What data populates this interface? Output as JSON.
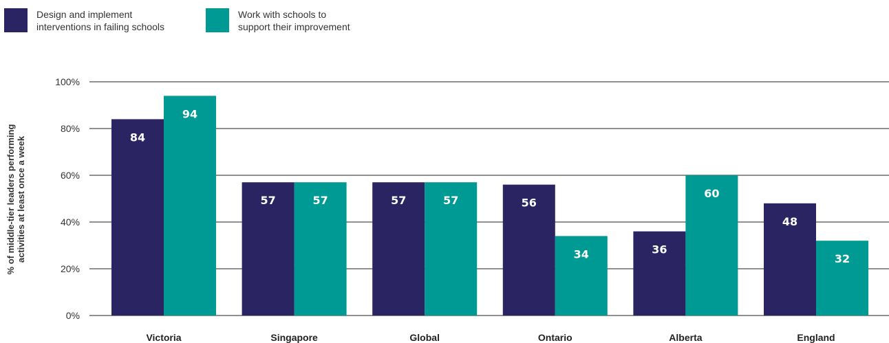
{
  "legend": {
    "items": [
      {
        "label": "Design and implement\ninterventions in failing schools",
        "color": "#2b2462"
      },
      {
        "label": "Work with schools to\nsupport their improvement",
        "color": "#009a94"
      }
    ]
  },
  "chart_data": {
    "type": "bar",
    "categories": [
      "Victoria",
      "Singapore",
      "Global",
      "Ontario",
      "Alberta",
      "England"
    ],
    "series": [
      {
        "name": "Design and implement interventions in failing schools",
        "values": [
          84,
          57,
          57,
          56,
          36,
          48
        ],
        "color": "#2b2462"
      },
      {
        "name": "Work with schools to support their improvement",
        "values": [
          94,
          57,
          57,
          34,
          60,
          32
        ],
        "color": "#009a94"
      }
    ],
    "ylabel": "% of middle-tier leaders performing activities at least once a week",
    "ylabel_lines": [
      "% of middle-tier leaders performing",
      "activities at least once a week"
    ],
    "yticks": [
      "0%",
      "20%",
      "40%",
      "60%",
      "80%",
      "100%"
    ],
    "ylim": [
      0,
      100
    ],
    "grid": true,
    "legend_position": "top-left"
  }
}
